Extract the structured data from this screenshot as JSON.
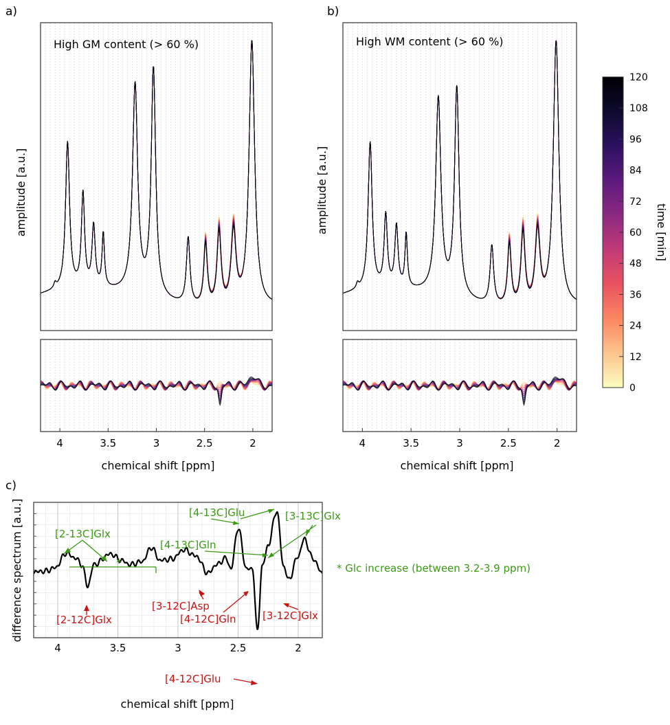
{
  "panel_labels": {
    "a": "a)",
    "b": "b)",
    "c": "c)"
  },
  "colorbar": {
    "label": "time [min]",
    "ticks": [
      "0",
      "12",
      "24",
      "36",
      "48",
      "60",
      "72",
      "84",
      "96",
      "108",
      "120"
    ],
    "range": [
      0,
      120
    ],
    "colors": [
      "#fcfdbf",
      "#fdc48e",
      "#fb8761",
      "#e85362",
      "#c03a76",
      "#8c2981",
      "#5c1a7e",
      "#2c115f",
      "#0e0a2e",
      "#000004"
    ]
  },
  "chart_data": [
    {
      "type": "line",
      "panel": "a",
      "title": "High GM content (> 60 %)",
      "ylabel": "amplitude [a.u.]",
      "xlabel": "chemical shift [ppm]",
      "xlim": [
        4.2,
        1.8
      ],
      "x_ticks": [
        "4",
        "3.5",
        "3",
        "2.5",
        "2"
      ],
      "peaks": [
        {
          "ppm": 4.05,
          "height": 0.02,
          "width": 0.015
        },
        {
          "ppm": 3.92,
          "height": 0.55,
          "width": 0.025
        },
        {
          "ppm": 3.76,
          "height": 0.35,
          "width": 0.02
        },
        {
          "ppm": 3.65,
          "height": 0.23,
          "width": 0.02
        },
        {
          "ppm": 3.55,
          "height": 0.2,
          "width": 0.015
        },
        {
          "ppm": 3.22,
          "height": 0.78,
          "width": 0.032
        },
        {
          "ppm": 3.03,
          "height": 0.85,
          "width": 0.028
        },
        {
          "ppm": 2.67,
          "height": 0.25,
          "width": 0.022
        },
        {
          "ppm": 2.49,
          "height": 0.25,
          "width": 0.022
        },
        {
          "ppm": 2.35,
          "height": 0.3,
          "width": 0.025
        },
        {
          "ppm": 2.2,
          "height": 0.3,
          "width": 0.03
        },
        {
          "ppm": 2.01,
          "height": 1.0,
          "width": 0.035
        }
      ]
    },
    {
      "type": "line",
      "panel": "b",
      "title": "High WM content (> 60 %)",
      "ylabel": "amplitude [a.u.]",
      "xlabel": "chemical shift [ppm]",
      "xlim": [
        4.2,
        1.8
      ],
      "x_ticks": [
        "4",
        "3.5",
        "3",
        "2.5",
        "2"
      ],
      "peaks": [
        {
          "ppm": 4.05,
          "height": 0.02,
          "width": 0.015
        },
        {
          "ppm": 3.92,
          "height": 0.55,
          "width": 0.025
        },
        {
          "ppm": 3.76,
          "height": 0.27,
          "width": 0.02
        },
        {
          "ppm": 3.65,
          "height": 0.23,
          "width": 0.02
        },
        {
          "ppm": 3.55,
          "height": 0.2,
          "width": 0.015
        },
        {
          "ppm": 3.22,
          "height": 0.73,
          "width": 0.032
        },
        {
          "ppm": 3.03,
          "height": 0.78,
          "width": 0.028
        },
        {
          "ppm": 2.67,
          "height": 0.22,
          "width": 0.022
        },
        {
          "ppm": 2.49,
          "height": 0.25,
          "width": 0.022
        },
        {
          "ppm": 2.35,
          "height": 0.3,
          "width": 0.025
        },
        {
          "ppm": 2.2,
          "height": 0.3,
          "width": 0.03
        },
        {
          "ppm": 2.01,
          "height": 1.0,
          "width": 0.035
        }
      ]
    },
    {
      "type": "line",
      "panel": "c",
      "xlabel": "chemical shift [ppm]",
      "ylabel": "difference spectrum [a.u.]",
      "xlim": [
        4.2,
        1.8
      ],
      "x_ticks": [
        "4",
        "3.5",
        "3",
        "2.5",
        "2"
      ],
      "points": [
        [
          4.2,
          -0.22
        ],
        [
          4.1,
          -0.2
        ],
        [
          4.02,
          -0.12
        ],
        [
          3.93,
          0.22
        ],
        [
          3.85,
          0.1
        ],
        [
          3.8,
          -0.05
        ],
        [
          3.75,
          -0.55
        ],
        [
          3.7,
          -0.05
        ],
        [
          3.56,
          0.2
        ],
        [
          3.47,
          0.05
        ],
        [
          3.4,
          -0.05
        ],
        [
          3.3,
          0.02
        ],
        [
          3.22,
          0.35
        ],
        [
          3.15,
          0.05
        ],
        [
          3.05,
          0.08
        ],
        [
          2.95,
          0.3
        ],
        [
          2.85,
          0.15
        ],
        [
          2.75,
          -0.25
        ],
        [
          2.68,
          -0.05
        ],
        [
          2.6,
          0.1
        ],
        [
          2.56,
          -0.15
        ],
        [
          2.5,
          0.8
        ],
        [
          2.43,
          -0.15
        ],
        [
          2.38,
          -0.15
        ],
        [
          2.34,
          -1.6
        ],
        [
          2.3,
          -0.1
        ],
        [
          2.25,
          0.4
        ],
        [
          2.18,
          1.2
        ],
        [
          2.12,
          -0.1
        ],
        [
          2.08,
          -0.4
        ],
        [
          2.0,
          0.15
        ],
        [
          1.95,
          0.55
        ],
        [
          1.88,
          0.1
        ],
        [
          1.8,
          -0.25
        ]
      ],
      "annotations_green": [
        {
          "text": "[2-13C]Glx"
        },
        {
          "text": "[4-13C]Glu"
        },
        {
          "text": "[3-13C]Glx"
        },
        {
          "text": "[4-13C]Gln"
        },
        {
          "text": "*"
        },
        {
          "text": "* Glc increase (between 3.2-3.9 ppm)"
        }
      ],
      "annotations_red": [
        {
          "text": "[2-12C]Glx"
        },
        {
          "text": "[3-12C]Asp"
        },
        {
          "text": "[4-12C]Gln"
        },
        {
          "text": "[3-12C]Glx"
        },
        {
          "text": "[4-12C]Glu"
        }
      ]
    }
  ]
}
